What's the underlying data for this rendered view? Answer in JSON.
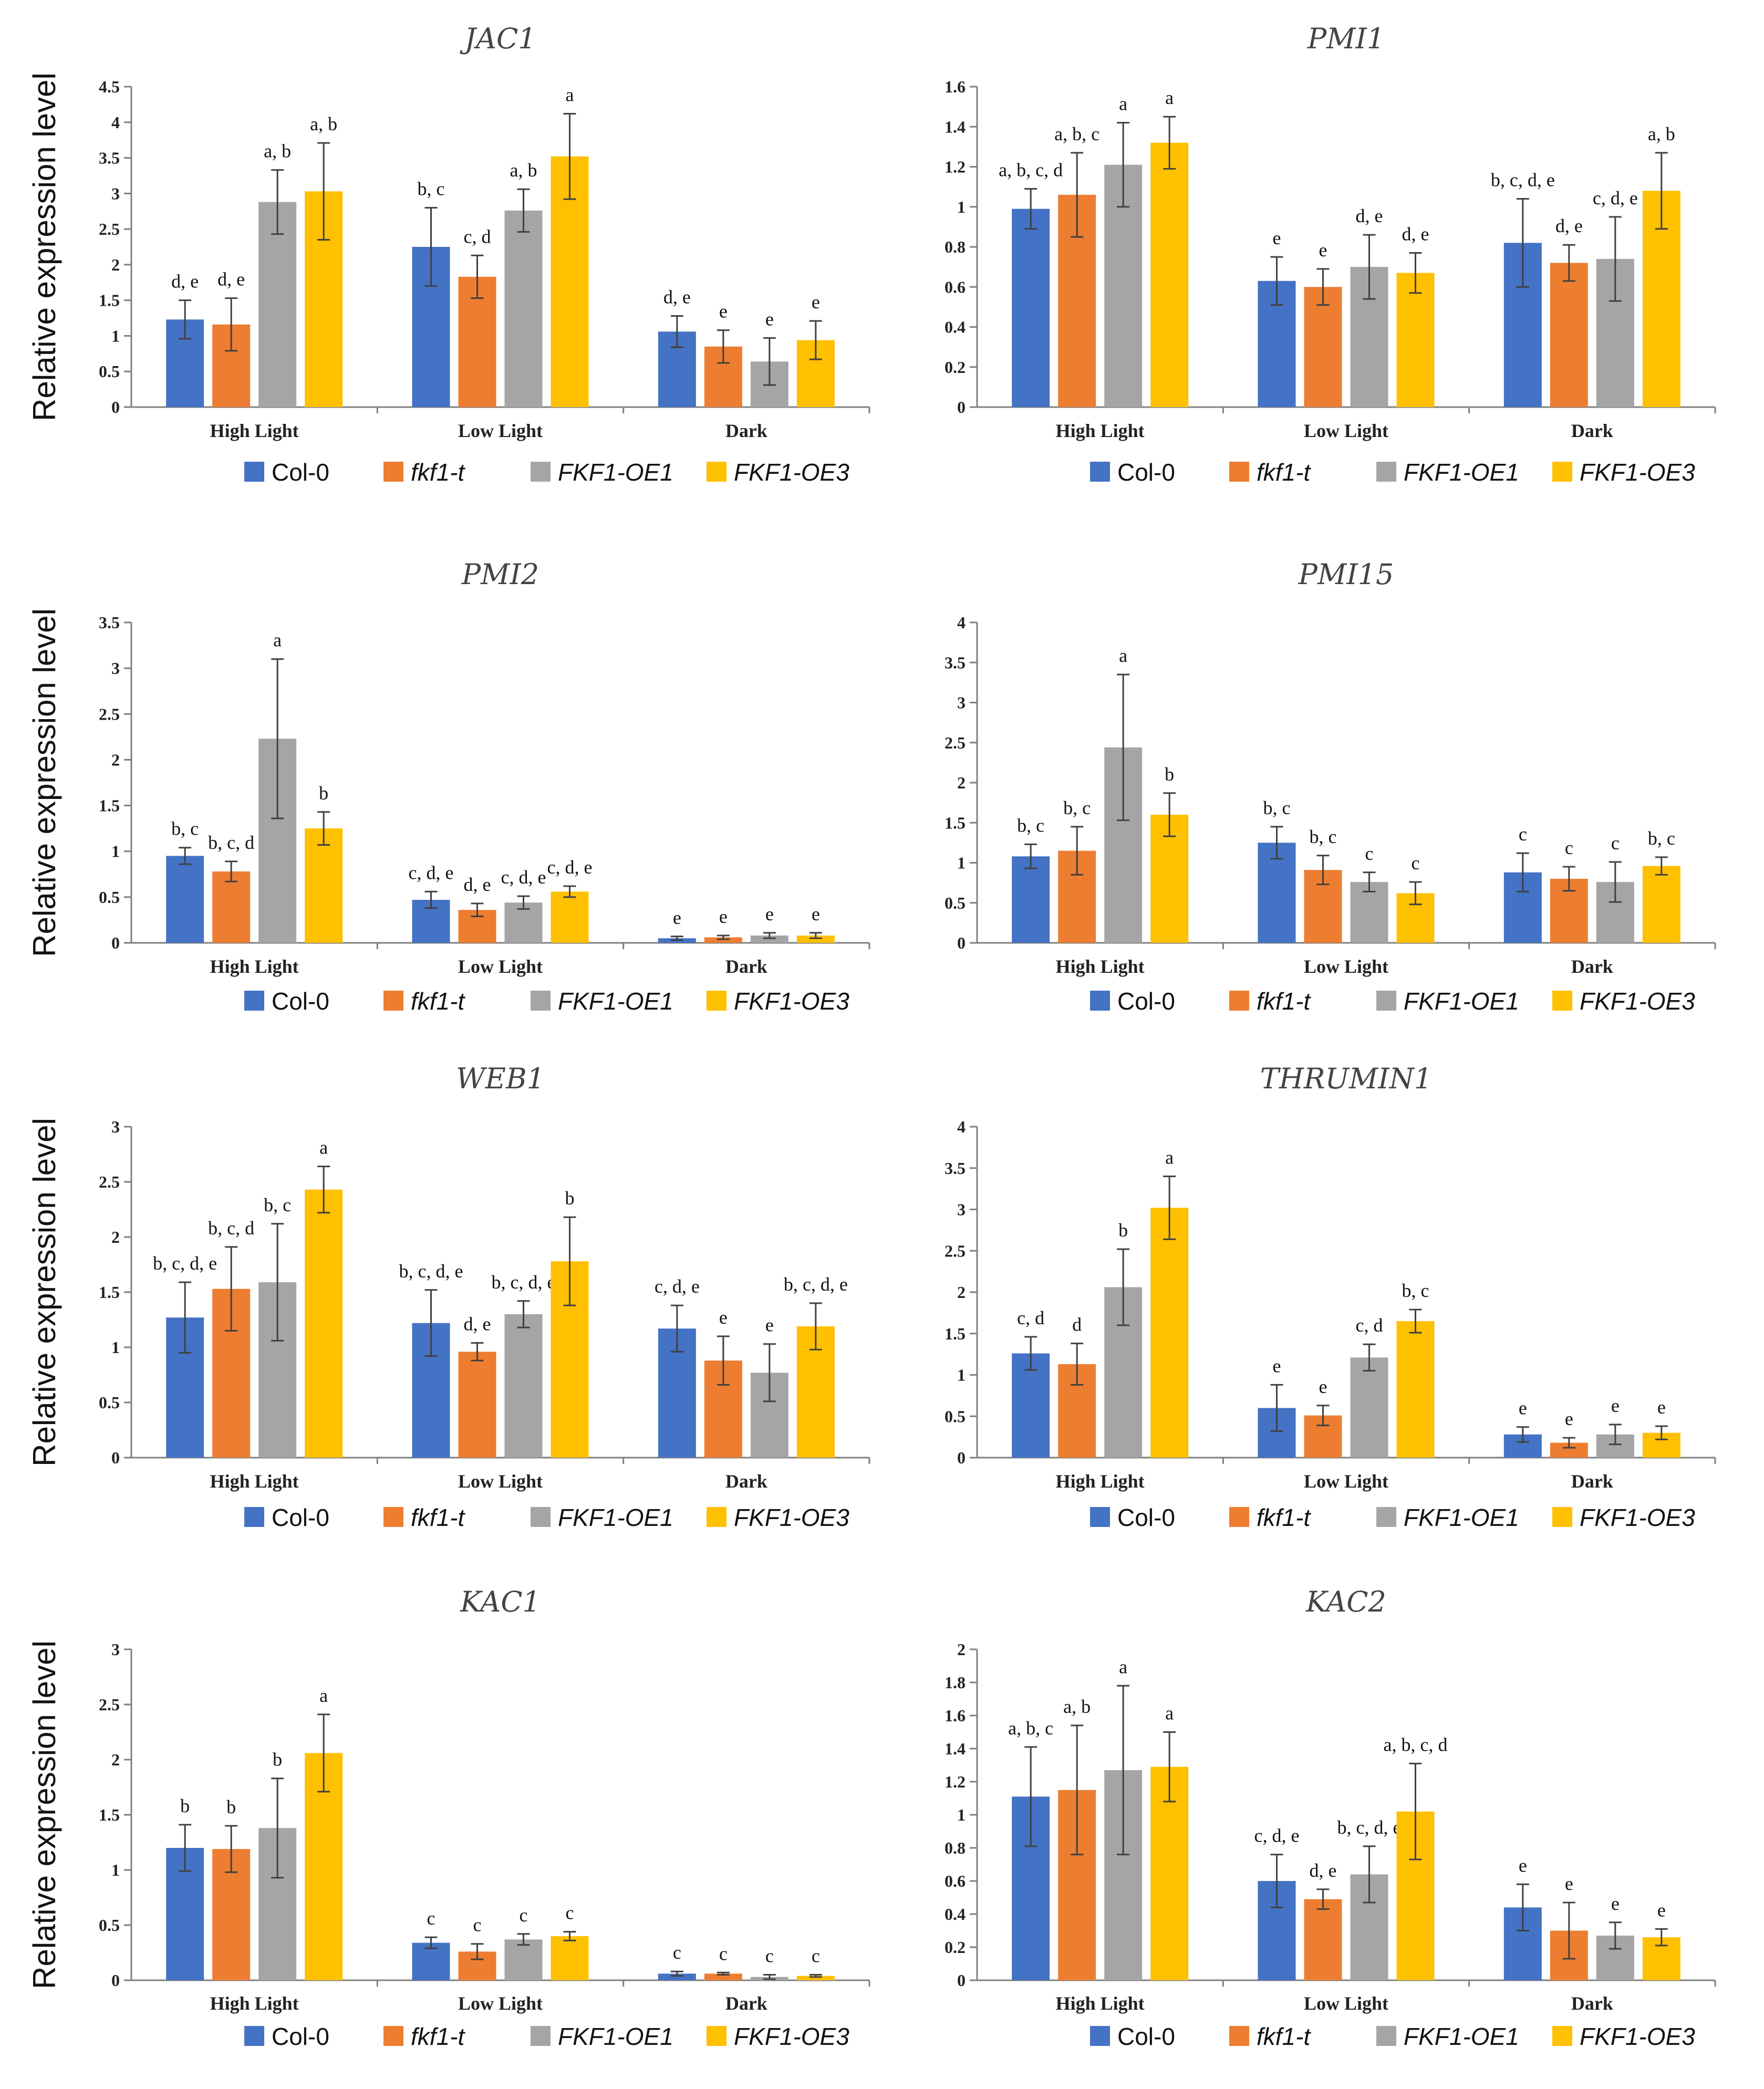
{
  "ylabel": "Relative expression level",
  "legend": [
    {
      "name": "Col-0",
      "color": "#4472C4",
      "italic": false
    },
    {
      "name": "fkf1-t",
      "color": "#ED7D31",
      "italic": true
    },
    {
      "name": "FKF1-OE1",
      "color": "#A5A5A5",
      "italic": true
    },
    {
      "name": "FKF1-OE3",
      "color": "#FFC000",
      "italic": true
    }
  ],
  "chart_data": [
    {
      "type": "bar",
      "title": "JAC1",
      "categories": [
        "High Light",
        "Low Light",
        "Dark"
      ],
      "ylim": [
        0,
        4.5
      ],
      "yticks": [
        "0",
        "0.5",
        "1",
        "1.5",
        "2",
        "2.5",
        "3",
        "3.5",
        "4",
        "4.5"
      ],
      "series": [
        {
          "name": "Col-0",
          "values": [
            1.23,
            2.25,
            1.06
          ],
          "errors": [
            0.27,
            0.55,
            0.22
          ],
          "labels": [
            "d, e",
            "b, c",
            "d, e"
          ]
        },
        {
          "name": "fkf1-t",
          "values": [
            1.16,
            1.83,
            0.85
          ],
          "errors": [
            0.37,
            0.3,
            0.23
          ],
          "labels": [
            "d, e",
            "c, d",
            "e"
          ]
        },
        {
          "name": "FKF1-OE1",
          "values": [
            2.88,
            2.76,
            0.64
          ],
          "errors": [
            0.45,
            0.3,
            0.33
          ],
          "labels": [
            "a, b",
            "a, b",
            "e"
          ]
        },
        {
          "name": "FKF1-OE3",
          "values": [
            3.03,
            3.52,
            0.94
          ],
          "errors": [
            0.68,
            0.6,
            0.27
          ],
          "labels": [
            "a, b",
            "a",
            "e"
          ]
        }
      ]
    },
    {
      "type": "bar",
      "title": "PMI1",
      "categories": [
        "High Light",
        "Low Light",
        "Dark"
      ],
      "ylim": [
        0,
        1.6
      ],
      "yticks": [
        "0",
        "0.2",
        "0.4",
        "0.6",
        "0.8",
        "1",
        "1.2",
        "1.4",
        "1.6"
      ],
      "series": [
        {
          "name": "Col-0",
          "values": [
            0.99,
            0.63,
            0.82
          ],
          "errors": [
            0.1,
            0.12,
            0.22
          ],
          "labels": [
            "a, b, c, d",
            "e",
            "b, c, d, e"
          ]
        },
        {
          "name": "fkf1-t",
          "values": [
            1.06,
            0.6,
            0.72
          ],
          "errors": [
            0.21,
            0.09,
            0.09
          ],
          "labels": [
            "a, b, c",
            "e",
            "d, e"
          ]
        },
        {
          "name": "FKF1-OE1",
          "values": [
            1.21,
            0.7,
            0.74
          ],
          "errors": [
            0.21,
            0.16,
            0.21
          ],
          "labels": [
            "a",
            "d, e",
            "c, d, e"
          ]
        },
        {
          "name": "FKF1-OE3",
          "values": [
            1.32,
            0.67,
            1.08
          ],
          "errors": [
            0.13,
            0.1,
            0.19
          ],
          "labels": [
            "a",
            "d, e",
            "a, b"
          ]
        }
      ]
    },
    {
      "type": "bar",
      "title": "PMI2",
      "categories": [
        "High Light",
        "Low Light",
        "Dark"
      ],
      "ylim": [
        0,
        3.5
      ],
      "yticks": [
        "0",
        "0.5",
        "1",
        "1.5",
        "2",
        "2.5",
        "3",
        "3.5"
      ],
      "series": [
        {
          "name": "Col-0",
          "values": [
            0.95,
            0.47,
            0.05
          ],
          "errors": [
            0.09,
            0.09,
            0.02
          ],
          "labels": [
            "b, c",
            "c, d, e",
            "e"
          ]
        },
        {
          "name": "fkf1-t",
          "values": [
            0.78,
            0.36,
            0.06
          ],
          "errors": [
            0.11,
            0.07,
            0.02
          ],
          "labels": [
            "b, c, d",
            "d, e",
            "e"
          ]
        },
        {
          "name": "FKF1-OE1",
          "values": [
            2.23,
            0.44,
            0.08
          ],
          "errors": [
            0.87,
            0.07,
            0.03
          ],
          "labels": [
            "a",
            "c, d, e",
            "e"
          ]
        },
        {
          "name": "FKF1-OE3",
          "values": [
            1.25,
            0.56,
            0.08
          ],
          "errors": [
            0.18,
            0.06,
            0.03
          ],
          "labels": [
            "b",
            "c, d, e",
            "e"
          ]
        }
      ]
    },
    {
      "type": "bar",
      "title": "PMI15",
      "categories": [
        "High Light",
        "Low Light",
        "Dark"
      ],
      "ylim": [
        0,
        4
      ],
      "yticks": [
        "0",
        "0.5",
        "1",
        "1.5",
        "2",
        "2.5",
        "3",
        "3.5",
        "4"
      ],
      "series": [
        {
          "name": "Col-0",
          "values": [
            1.08,
            1.25,
            0.88
          ],
          "errors": [
            0.15,
            0.2,
            0.24
          ],
          "labels": [
            "b, c",
            "b, c",
            "c"
          ]
        },
        {
          "name": "fkf1-t",
          "values": [
            1.15,
            0.91,
            0.8
          ],
          "errors": [
            0.3,
            0.18,
            0.15
          ],
          "labels": [
            "b, c",
            "b, c",
            "c"
          ]
        },
        {
          "name": "FKF1-OE1",
          "values": [
            2.44,
            0.76,
            0.76
          ],
          "errors": [
            0.91,
            0.12,
            0.25
          ],
          "labels": [
            "a",
            "c",
            "c"
          ]
        },
        {
          "name": "FKF1-OE3",
          "values": [
            1.6,
            0.62,
            0.96
          ],
          "errors": [
            0.27,
            0.14,
            0.11
          ],
          "labels": [
            "b",
            "c",
            "b, c"
          ]
        }
      ]
    },
    {
      "type": "bar",
      "title": "WEB1",
      "categories": [
        "High Light",
        "Low Light",
        "Dark"
      ],
      "ylim": [
        0,
        3
      ],
      "yticks": [
        "0",
        "0.5",
        "1",
        "1.5",
        "2",
        "2.5",
        "3"
      ],
      "series": [
        {
          "name": "Col-0",
          "values": [
            1.27,
            1.22,
            1.17
          ],
          "errors": [
            0.32,
            0.3,
            0.21
          ],
          "labels": [
            "b, c, d, e",
            "b, c, d, e",
            "c, d, e"
          ]
        },
        {
          "name": "fkf1-t",
          "values": [
            1.53,
            0.96,
            0.88
          ],
          "errors": [
            0.38,
            0.08,
            0.22
          ],
          "labels": [
            "b, c, d",
            "d, e",
            "e"
          ]
        },
        {
          "name": "FKF1-OE1",
          "values": [
            1.59,
            1.3,
            0.77
          ],
          "errors": [
            0.53,
            0.12,
            0.26
          ],
          "labels": [
            "b, c",
            "b, c, d, e",
            "e"
          ]
        },
        {
          "name": "FKF1-OE3",
          "values": [
            2.43,
            1.78,
            1.19
          ],
          "errors": [
            0.21,
            0.4,
            0.21
          ],
          "labels": [
            "a",
            "b",
            "b, c, d, e"
          ]
        }
      ]
    },
    {
      "type": "bar",
      "title": "THRUMIN1",
      "categories": [
        "High Light",
        "Low Light",
        "Dark"
      ],
      "ylim": [
        0,
        4
      ],
      "yticks": [
        "0",
        "0.5",
        "1",
        "1.5",
        "2",
        "2.5",
        "3",
        "3.5",
        "4"
      ],
      "series": [
        {
          "name": "Col-0",
          "values": [
            1.26,
            0.6,
            0.28
          ],
          "errors": [
            0.2,
            0.28,
            0.09
          ],
          "labels": [
            "c, d",
            "e",
            "e"
          ]
        },
        {
          "name": "fkf1-t",
          "values": [
            1.13,
            0.51,
            0.18
          ],
          "errors": [
            0.25,
            0.12,
            0.06
          ],
          "labels": [
            "d",
            "e",
            "e"
          ]
        },
        {
          "name": "FKF1-OE1",
          "values": [
            2.06,
            1.21,
            0.28
          ],
          "errors": [
            0.46,
            0.16,
            0.12
          ],
          "labels": [
            "b",
            "c, d",
            "e"
          ]
        },
        {
          "name": "FKF1-OE3",
          "values": [
            3.02,
            1.65,
            0.3
          ],
          "errors": [
            0.38,
            0.14,
            0.08
          ],
          "labels": [
            "a",
            "b, c",
            "e"
          ]
        }
      ]
    },
    {
      "type": "bar",
      "title": "KAC1",
      "categories": [
        "High Light",
        "Low Light",
        "Dark"
      ],
      "ylim": [
        0,
        3
      ],
      "yticks": [
        "0",
        "0.5",
        "1",
        "1.5",
        "2",
        "2.5",
        "3"
      ],
      "series": [
        {
          "name": "Col-0",
          "values": [
            1.2,
            0.34,
            0.06
          ],
          "errors": [
            0.21,
            0.05,
            0.02
          ],
          "labels": [
            "b",
            "c",
            "c"
          ]
        },
        {
          "name": "fkf1-t",
          "values": [
            1.19,
            0.26,
            0.06
          ],
          "errors": [
            0.21,
            0.07,
            0.01
          ],
          "labels": [
            "b",
            "c",
            "c"
          ]
        },
        {
          "name": "FKF1-OE1",
          "values": [
            1.38,
            0.37,
            0.03
          ],
          "errors": [
            0.45,
            0.05,
            0.02
          ],
          "labels": [
            "b",
            "c",
            "c"
          ]
        },
        {
          "name": "FKF1-OE3",
          "values": [
            2.06,
            0.4,
            0.04
          ],
          "errors": [
            0.35,
            0.04,
            0.01
          ],
          "labels": [
            "a",
            "c",
            "c"
          ]
        }
      ]
    },
    {
      "type": "bar",
      "title": "KAC2",
      "categories": [
        "High Light",
        "Low Light",
        "Dark"
      ],
      "ylim": [
        0,
        2
      ],
      "yticks": [
        "0",
        "0.2",
        "0.4",
        "0.6",
        "0.8",
        "1",
        "1.2",
        "1.4",
        "1.6",
        "1.8",
        "2"
      ],
      "series": [
        {
          "name": "Col-0",
          "values": [
            1.11,
            0.6,
            0.44
          ],
          "errors": [
            0.3,
            0.16,
            0.14
          ],
          "labels": [
            "a, b, c",
            "c, d, e",
            "e"
          ]
        },
        {
          "name": "fkf1-t",
          "values": [
            1.15,
            0.49,
            0.3
          ],
          "errors": [
            0.39,
            0.06,
            0.17
          ],
          "labels": [
            "a, b",
            "d, e",
            "e"
          ]
        },
        {
          "name": "FKF1-OE1",
          "values": [
            1.27,
            0.64,
            0.27
          ],
          "errors": [
            0.51,
            0.17,
            0.08
          ],
          "labels": [
            "a",
            "b, c, d, e",
            "e"
          ]
        },
        {
          "name": "FKF1-OE3",
          "values": [
            1.29,
            1.02,
            0.26
          ],
          "errors": [
            0.21,
            0.29,
            0.05
          ],
          "labels": [
            "a",
            "a, b, c, d",
            "e"
          ]
        }
      ]
    }
  ]
}
